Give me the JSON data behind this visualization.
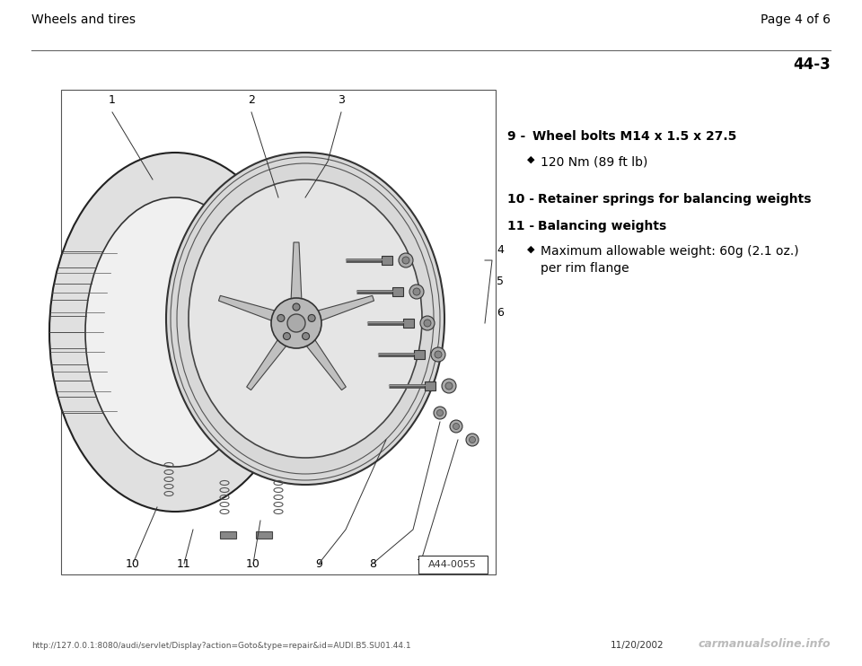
{
  "page_title_left": "Wheels and tires",
  "page_title_right": "Page 4 of 6",
  "section_number": "44-3",
  "diagram_label": "A44-0055",
  "items": [
    {
      "number": "9",
      "bold_text": "Wheel bolts M14 x 1.5 x 27.5",
      "sub_items": [
        "120 Nm (89 ft lb)"
      ]
    },
    {
      "number": "10",
      "bold_text": "Retainer springs for balancing weights",
      "sub_items": []
    },
    {
      "number": "11",
      "bold_text": "Balancing weights",
      "sub_items": [
        "Maximum allowable weight: 60g (2.1 oz.)\nper rim flange"
      ]
    }
  ],
  "footer_url": "http://127.0.0.1:8080/audi/servlet/Display?action=Goto&type=repair&id=AUDI.B5.SU01.44.1",
  "footer_date": "11/20/2002",
  "footer_logo": "carmanualsoline.info",
  "bg_color": "#ffffff",
  "text_color": "#000000"
}
